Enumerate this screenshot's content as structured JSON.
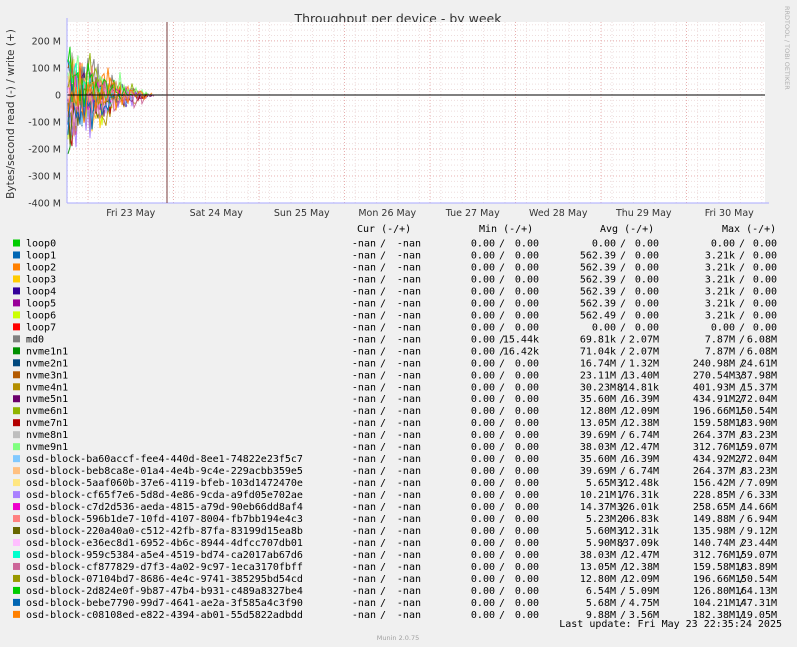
{
  "chart_data": {
    "type": "line",
    "title": "Throughput per device - by week",
    "ylabel": "Bytes/second read (-) / write (+)",
    "side_label": "RRDTOOL / TOBI OETIKER",
    "ylim": [
      -400000000,
      270000000
    ],
    "y_ticks": [
      {
        "label": "200 M",
        "value": 200000000
      },
      {
        "label": "100 M",
        "value": 100000000
      },
      {
        "label": "0",
        "value": 0
      },
      {
        "label": "-100 M",
        "value": -100000000
      },
      {
        "label": "-200 M",
        "value": -200000000
      },
      {
        "label": "-300 M",
        "value": -300000000
      },
      {
        "label": "-400 M",
        "value": -400000000
      }
    ],
    "x_ticks": [
      "Fri 23 May",
      "Sat 24 May",
      "Sun 25 May",
      "Mon 26 May",
      "Tue 27 May",
      "Wed 28 May",
      "Thu 29 May",
      "Fri 30 May"
    ],
    "grid": true,
    "columns": [
      "Cur (-/+)",
      "Min (-/+)",
      "Avg (-/+)",
      "Max (-/+)"
    ],
    "series": [
      {
        "name": "loop0",
        "color": "#00cc00",
        "cur": [
          "-nan",
          "-nan"
        ],
        "min": [
          "0.00",
          "0.00"
        ],
        "avg": [
          "0.00",
          "0.00"
        ],
        "max": [
          "0.00",
          "0.00"
        ]
      },
      {
        "name": "loop1",
        "color": "#0066b3",
        "cur": [
          "-nan",
          "-nan"
        ],
        "min": [
          "0.00",
          "0.00"
        ],
        "avg": [
          "562.39",
          "0.00"
        ],
        "max": [
          "3.21k",
          "0.00"
        ]
      },
      {
        "name": "loop2",
        "color": "#ff8000",
        "cur": [
          "-nan",
          "-nan"
        ],
        "min": [
          "0.00",
          "0.00"
        ],
        "avg": [
          "562.39",
          "0.00"
        ],
        "max": [
          "3.21k",
          "0.00"
        ]
      },
      {
        "name": "loop3",
        "color": "#ffcc00",
        "cur": [
          "-nan",
          "-nan"
        ],
        "min": [
          "0.00",
          "0.00"
        ],
        "avg": [
          "562.39",
          "0.00"
        ],
        "max": [
          "3.21k",
          "0.00"
        ]
      },
      {
        "name": "loop4",
        "color": "#330099",
        "cur": [
          "-nan",
          "-nan"
        ],
        "min": [
          "0.00",
          "0.00"
        ],
        "avg": [
          "562.39",
          "0.00"
        ],
        "max": [
          "3.21k",
          "0.00"
        ]
      },
      {
        "name": "loop5",
        "color": "#990099",
        "cur": [
          "-nan",
          "-nan"
        ],
        "min": [
          "0.00",
          "0.00"
        ],
        "avg": [
          "562.39",
          "0.00"
        ],
        "max": [
          "3.21k",
          "0.00"
        ]
      },
      {
        "name": "loop6",
        "color": "#ccff00",
        "cur": [
          "-nan",
          "-nan"
        ],
        "min": [
          "0.00",
          "0.00"
        ],
        "avg": [
          "562.49",
          "0.00"
        ],
        "max": [
          "3.21k",
          "0.00"
        ]
      },
      {
        "name": "loop7",
        "color": "#ff0000",
        "cur": [
          "-nan",
          "-nan"
        ],
        "min": [
          "0.00",
          "0.00"
        ],
        "avg": [
          "0.00",
          "0.00"
        ],
        "max": [
          "0.00",
          "0.00"
        ]
      },
      {
        "name": "md0",
        "color": "#808080",
        "cur": [
          "-nan",
          "-nan"
        ],
        "min": [
          "0.00",
          "15.44k"
        ],
        "avg": [
          "69.81k",
          "2.07M"
        ],
        "max": [
          "7.87M",
          "6.08M"
        ]
      },
      {
        "name": "nvme1n1",
        "color": "#008f00",
        "cur": [
          "-nan",
          "-nan"
        ],
        "min": [
          "0.00",
          "16.42k"
        ],
        "avg": [
          "71.04k",
          "2.07M"
        ],
        "max": [
          "7.87M",
          "6.08M"
        ]
      },
      {
        "name": "nvme2n1",
        "color": "#00487d",
        "cur": [
          "-nan",
          "-nan"
        ],
        "min": [
          "0.00",
          "0.00"
        ],
        "avg": [
          "16.74M",
          "1.32M"
        ],
        "max": [
          "240.98M",
          "24.61M"
        ]
      },
      {
        "name": "nvme3n1",
        "color": "#b35a00",
        "cur": [
          "-nan",
          "-nan"
        ],
        "min": [
          "0.00",
          "0.00"
        ],
        "avg": [
          "23.11M",
          "13.40M"
        ],
        "max": [
          "270.54M",
          "337.98M"
        ]
      },
      {
        "name": "nvme4n1",
        "color": "#b38f00",
        "cur": [
          "-nan",
          "-nan"
        ],
        "min": [
          "0.00",
          "0.00"
        ],
        "avg": [
          "30.23M",
          "814.81k"
        ],
        "max": [
          "401.93M",
          "15.37M"
        ]
      },
      {
        "name": "nvme5n1",
        "color": "#6b006b",
        "cur": [
          "-nan",
          "-nan"
        ],
        "min": [
          "0.00",
          "0.00"
        ],
        "avg": [
          "35.60M",
          "16.39M"
        ],
        "max": [
          "434.91M",
          "272.04M"
        ]
      },
      {
        "name": "nvme6n1",
        "color": "#8fb300",
        "cur": [
          "-nan",
          "-nan"
        ],
        "min": [
          "0.00",
          "0.00"
        ],
        "avg": [
          "12.80M",
          "12.09M"
        ],
        "max": [
          "196.66M",
          "150.54M"
        ]
      },
      {
        "name": "nvme7n1",
        "color": "#b30000",
        "cur": [
          "-nan",
          "-nan"
        ],
        "min": [
          "0.00",
          "0.00"
        ],
        "avg": [
          "13.05M",
          "12.38M"
        ],
        "max": [
          "159.58M",
          "183.90M"
        ]
      },
      {
        "name": "nvme8n1",
        "color": "#bebebe",
        "cur": [
          "-nan",
          "-nan"
        ],
        "min": [
          "0.00",
          "0.00"
        ],
        "avg": [
          "39.69M",
          "6.74M"
        ],
        "max": [
          "264.37M",
          "83.23M"
        ]
      },
      {
        "name": "nvme9n1",
        "color": "#80ff80",
        "cur": [
          "-nan",
          "-nan"
        ],
        "min": [
          "0.00",
          "0.00"
        ],
        "avg": [
          "38.03M",
          "12.47M"
        ],
        "max": [
          "312.76M",
          "159.07M"
        ]
      },
      {
        "name": "osd-block-ba60accf-fee4-440d-8ee1-74822e23f5c7",
        "color": "#80c9ff",
        "cur": [
          "-nan",
          "-nan"
        ],
        "min": [
          "0.00",
          "0.00"
        ],
        "avg": [
          "35.60M",
          "16.39M"
        ],
        "max": [
          "434.92M",
          "272.04M"
        ]
      },
      {
        "name": "osd-block-beb8ca8e-01a4-4e4b-9c4e-229acbb359e5",
        "color": "#ffc080",
        "cur": [
          "-nan",
          "-nan"
        ],
        "min": [
          "0.00",
          "0.00"
        ],
        "avg": [
          "39.69M",
          "6.74M"
        ],
        "max": [
          "264.37M",
          "83.23M"
        ]
      },
      {
        "name": "osd-block-5aaf060b-37e6-4119-bfeb-103d1472470e",
        "color": "#ffe680",
        "cur": [
          "-nan",
          "-nan"
        ],
        "min": [
          "0.00",
          "0.00"
        ],
        "avg": [
          "5.65M",
          "312.48k"
        ],
        "max": [
          "156.42M",
          "7.09M"
        ]
      },
      {
        "name": "osd-block-cf65f7e6-5d8d-4e86-9cda-a9fd05e702ae",
        "color": "#aa80ff",
        "cur": [
          "-nan",
          "-nan"
        ],
        "min": [
          "0.00",
          "0.00"
        ],
        "avg": [
          "10.21M",
          "176.31k"
        ],
        "max": [
          "228.85M",
          "6.33M"
        ]
      },
      {
        "name": "osd-block-c7d2d536-aeda-4815-a79d-90eb66dd8af4",
        "color": "#ee00cc",
        "cur": [
          "-nan",
          "-nan"
        ],
        "min": [
          "0.00",
          "0.00"
        ],
        "avg": [
          "14.37M",
          "326.01k"
        ],
        "max": [
          "258.65M",
          "14.66M"
        ]
      },
      {
        "name": "osd-block-596b1de7-10fd-4107-8004-fb7bb194e4c3",
        "color": "#ff8080",
        "cur": [
          "-nan",
          "-nan"
        ],
        "min": [
          "0.00",
          "0.00"
        ],
        "avg": [
          "5.23M",
          "206.83k"
        ],
        "max": [
          "149.88M",
          "6.94M"
        ]
      },
      {
        "name": "osd-block-220a40a0-c512-42fb-87fa-83199d15ea8b",
        "color": "#666600",
        "cur": [
          "-nan",
          "-nan"
        ],
        "min": [
          "0.00",
          "0.00"
        ],
        "avg": [
          "5.60M",
          "312.31k"
        ],
        "max": [
          "135.98M",
          "9.12M"
        ]
      },
      {
        "name": "osd-block-e36ec8d1-6952-4b6c-8944-4dfcc707db01",
        "color": "#ffbfff",
        "cur": [
          "-nan",
          "-nan"
        ],
        "min": [
          "0.00",
          "0.00"
        ],
        "avg": [
          "5.90M",
          "837.09k"
        ],
        "max": [
          "140.74M",
          "23.44M"
        ]
      },
      {
        "name": "osd-block-959c5384-a5e4-4519-bd74-ca2017ab67d6",
        "color": "#00ffcc",
        "cur": [
          "-nan",
          "-nan"
        ],
        "min": [
          "0.00",
          "0.00"
        ],
        "avg": [
          "38.03M",
          "12.47M"
        ],
        "max": [
          "312.76M",
          "159.07M"
        ]
      },
      {
        "name": "osd-block-cf877829-d7f3-4a02-9c97-1eca3170fbff",
        "color": "#cc6699",
        "cur": [
          "-nan",
          "-nan"
        ],
        "min": [
          "0.00",
          "0.00"
        ],
        "avg": [
          "13.05M",
          "12.38M"
        ],
        "max": [
          "159.58M",
          "183.89M"
        ]
      },
      {
        "name": "osd-block-07104bd7-8686-4e4c-9741-385295bd54cd",
        "color": "#999900",
        "cur": [
          "-nan",
          "-nan"
        ],
        "min": [
          "0.00",
          "0.00"
        ],
        "avg": [
          "12.80M",
          "12.09M"
        ],
        "max": [
          "196.66M",
          "150.54M"
        ]
      },
      {
        "name": "osd-block-2d824e0f-9b87-47b4-b931-c489a8327be4",
        "color": "#00cc00",
        "cur": [
          "-nan",
          "-nan"
        ],
        "min": [
          "0.00",
          "0.00"
        ],
        "avg": [
          "6.54M",
          "5.09M"
        ],
        "max": [
          "126.80M",
          "164.13M"
        ]
      },
      {
        "name": "osd-block-bebe7790-99d7-4641-ae2a-3f585a4c3f90",
        "color": "#0066b3",
        "cur": [
          "-nan",
          "-nan"
        ],
        "min": [
          "0.00",
          "0.00"
        ],
        "avg": [
          "5.68M",
          "4.75M"
        ],
        "max": [
          "104.21M",
          "147.31M"
        ]
      },
      {
        "name": "osd-block-c08108ed-e822-4394-ab01-55d5822adbdd",
        "color": "#ff8000",
        "cur": [
          "-nan",
          "-nan"
        ],
        "min": [
          "0.00",
          "0.00"
        ],
        "avg": [
          "9.88M",
          "3.56M"
        ],
        "max": [
          "182.38M",
          "119.05M"
        ]
      }
    ],
    "last_update": "Last update: Fri May 23 22:35:24 2025",
    "footer": "Munin 2.0.75"
  }
}
